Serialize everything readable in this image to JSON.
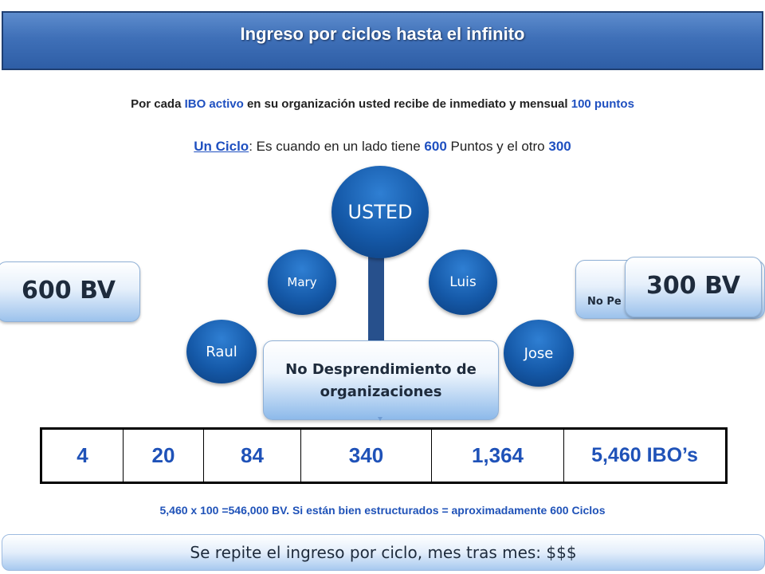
{
  "header": {
    "title": "Ingreso por ciclos hasta el infinito"
  },
  "intro": {
    "prefix": "Por cada ",
    "ibo_activo": "IBO activo",
    "middle": " en su organización usted recibe de inmediato y mensual ",
    "points": "100 puntos"
  },
  "cycle": {
    "label": "Un Ciclo",
    "text1": ": Es cuando en un lado tiene ",
    "v600": "600",
    "text2": " Puntos y el otro ",
    "v300": "300"
  },
  "tree": {
    "center": "USTED",
    "left_upper": "Mary",
    "left_lower": "Raul",
    "right_upper": "Luis",
    "right_lower": "Jose"
  },
  "left_bv": "600 BV",
  "right_bv": "300 BV",
  "right_bv_underlay": "No Pe",
  "orgs_box": {
    "line1": "No Desprendimiento de",
    "line2": "organizaciones"
  },
  "count_table": [
    "4",
    "20",
    "84",
    "340",
    "1,364",
    "5,460 IBO’s"
  ],
  "calc_line": "5,460 x 100 =546,000 BV.  Si están bien estructurados = aproximadamente 600 Ciclos",
  "bottom_bar": "Se repite el ingreso por ciclo, mes tras mes: $$$",
  "colors": {
    "header": "#3f70b8",
    "accent_blue": "#1f52b8",
    "circle": "#1559a8"
  }
}
